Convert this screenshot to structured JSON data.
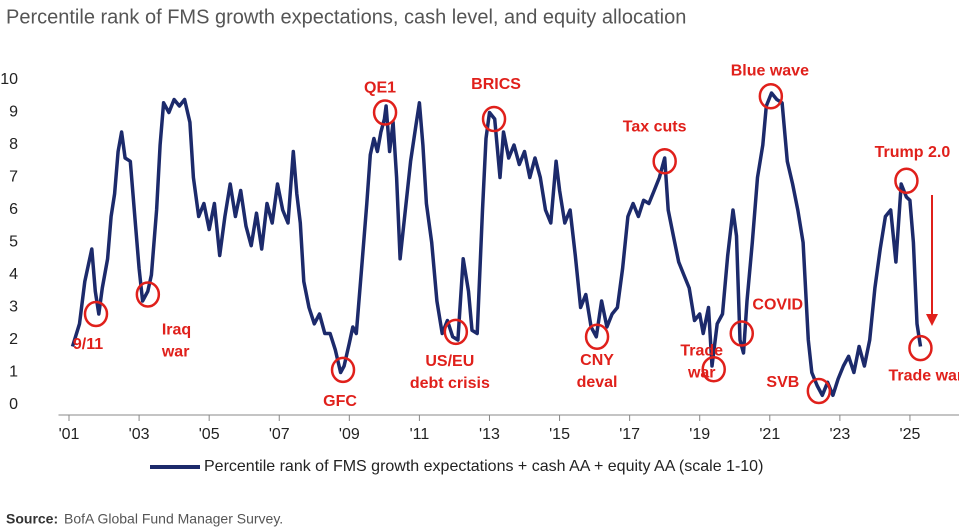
{
  "chart_data": {
    "type": "line",
    "title": "Percentile rank of FMS growth expectations, cash level, and equity allocation",
    "x": [
      2001.1,
      2001.3,
      2001.45,
      2001.55,
      2001.65,
      2001.75,
      2001.85,
      2001.95,
      2002.1,
      2002.2,
      2002.3,
      2002.4,
      2002.5,
      2002.6,
      2002.75,
      2002.9,
      2003.0,
      2003.1,
      2003.25,
      2003.35,
      2003.5,
      2003.6,
      2003.7,
      2003.85,
      2004.0,
      2004.15,
      2004.3,
      2004.45,
      2004.55,
      2004.7,
      2004.85,
      2005.0,
      2005.15,
      2005.3,
      2005.45,
      2005.6,
      2005.75,
      2005.9,
      2006.05,
      2006.2,
      2006.35,
      2006.5,
      2006.65,
      2006.8,
      2006.95,
      2007.1,
      2007.25,
      2007.4,
      2007.5,
      2007.6,
      2007.7,
      2007.85,
      2008.0,
      2008.15,
      2008.3,
      2008.45,
      2008.6,
      2008.75,
      2008.85,
      2009.0,
      2009.1,
      2009.2,
      2009.35,
      2009.5,
      2009.6,
      2009.7,
      2009.8,
      2009.9,
      2010.0,
      2010.05,
      2010.15,
      2010.25,
      2010.35,
      2010.45,
      2010.55,
      2010.65,
      2010.75,
      2010.9,
      2011.0,
      2011.1,
      2011.2,
      2011.35,
      2011.5,
      2011.65,
      2011.8,
      2011.95,
      2012.1,
      2012.25,
      2012.4,
      2012.5,
      2012.65,
      2012.8,
      2012.9,
      2013.0,
      2013.15,
      2013.3,
      2013.4,
      2013.55,
      2013.7,
      2013.85,
      2014.0,
      2014.15,
      2014.3,
      2014.45,
      2014.6,
      2014.75,
      2014.9,
      2015.0,
      2015.15,
      2015.3,
      2015.45,
      2015.6,
      2015.75,
      2015.9,
      2016.05,
      2016.2,
      2016.35,
      2016.5,
      2016.65,
      2016.8,
      2016.95,
      2017.1,
      2017.25,
      2017.4,
      2017.55,
      2017.7,
      2017.85,
      2018.0,
      2018.1,
      2018.25,
      2018.4,
      2018.55,
      2018.7,
      2018.85,
      2019.0,
      2019.1,
      2019.25,
      2019.35,
      2019.5,
      2019.65,
      2019.8,
      2019.95,
      2020.05,
      2020.15,
      2020.25,
      2020.35,
      2020.5,
      2020.65,
      2020.8,
      2020.9,
      2021.05,
      2021.2,
      2021.35,
      2021.5,
      2021.65,
      2021.8,
      2021.95,
      2022.1,
      2022.2,
      2022.35,
      2022.5,
      2022.65,
      2022.8,
      2022.95,
      2023.1,
      2023.25,
      2023.4,
      2023.55,
      2023.7,
      2023.85,
      2024.0,
      2024.15,
      2024.3,
      2024.45,
      2024.6,
      2024.75,
      2024.9,
      2025.0,
      2025.1,
      2025.2,
      2025.3
    ],
    "series": [
      {
        "name": "Percentile rank of FMS growth expectations + cash AA + equity AA (scale 1-10)",
        "color": "#1c2a6b",
        "values": [
          1.8,
          2.5,
          3.8,
          4.3,
          4.8,
          3.5,
          2.8,
          3.6,
          4.5,
          5.8,
          6.5,
          7.8,
          8.4,
          7.6,
          7.5,
          5.5,
          4.2,
          3.2,
          3.5,
          4.0,
          6.0,
          8.0,
          9.3,
          9.0,
          9.4,
          9.2,
          9.4,
          8.7,
          7.0,
          5.8,
          6.2,
          5.4,
          6.2,
          4.6,
          5.8,
          6.8,
          5.8,
          6.6,
          5.5,
          4.9,
          5.9,
          4.8,
          6.2,
          5.6,
          6.8,
          6.0,
          5.6,
          7.8,
          6.5,
          5.6,
          3.8,
          3.0,
          2.5,
          2.8,
          2.2,
          2.2,
          1.7,
          1.0,
          1.2,
          1.9,
          2.4,
          2.2,
          4.2,
          6.2,
          7.7,
          8.2,
          7.8,
          8.4,
          8.8,
          9.2,
          7.8,
          8.7,
          7.0,
          4.5,
          5.5,
          6.5,
          7.5,
          8.6,
          9.3,
          8.0,
          6.2,
          5.0,
          3.2,
          2.2,
          2.6,
          2.1,
          2.0,
          4.5,
          3.5,
          2.3,
          2.2,
          6.0,
          8.2,
          9.0,
          8.8,
          7.0,
          8.4,
          7.6,
          8.0,
          7.4,
          7.8,
          7.0,
          7.6,
          7.0,
          6.0,
          5.6,
          7.5,
          6.6,
          5.6,
          6.0,
          4.6,
          3.0,
          3.4,
          2.4,
          2.1,
          3.2,
          2.4,
          2.8,
          3.0,
          4.2,
          5.8,
          6.2,
          5.8,
          6.3,
          6.2,
          6.6,
          7.0,
          7.6,
          6.0,
          5.2,
          4.4,
          4.0,
          3.6,
          2.6,
          2.8,
          2.2,
          3.0,
          1.2,
          2.5,
          2.8,
          4.6,
          6.0,
          5.2,
          2.0,
          1.6,
          3.2,
          5.0,
          7.0,
          8.0,
          9.2,
          9.6,
          9.4,
          9.3,
          7.5,
          6.8,
          6.0,
          5.0,
          2.0,
          1.0,
          0.6,
          0.3,
          0.7,
          0.3,
          0.8,
          1.2,
          1.5,
          1.0,
          1.8,
          1.2,
          2.0,
          3.6,
          4.8,
          5.8,
          6.0,
          4.4,
          6.8,
          6.4,
          6.3,
          5.0,
          2.5,
          1.8
        ]
      }
    ],
    "xlim": [
      2000.7,
      2026.4
    ],
    "ylim": [
      0,
      10
    ],
    "xticks": [
      {
        "value": 2001,
        "label": "'01"
      },
      {
        "value": 2003,
        "label": "'03"
      },
      {
        "value": 2005,
        "label": "'05"
      },
      {
        "value": 2007,
        "label": "'07"
      },
      {
        "value": 2009,
        "label": "'09"
      },
      {
        "value": 2011,
        "label": "'11"
      },
      {
        "value": 2013,
        "label": "'13"
      },
      {
        "value": 2015,
        "label": "'15"
      },
      {
        "value": 2017,
        "label": "'17"
      },
      {
        "value": 2019,
        "label": "'19"
      },
      {
        "value": 2021,
        "label": "'21"
      },
      {
        "value": 2023,
        "label": "'23"
      },
      {
        "value": 2025,
        "label": "'25"
      }
    ],
    "yticks": [
      0,
      1,
      2,
      3,
      4,
      5,
      6,
      7,
      8,
      9,
      10
    ],
    "annotation_color": "#e0201b",
    "annotations": [
      {
        "lines": [
          "9/11"
        ],
        "x": 2001.77,
        "y": 2.8
      },
      {
        "lines": [
          "Iraq",
          "war"
        ],
        "x": 2003.25,
        "y": 3.4
      },
      {
        "lines": [
          "GFC"
        ],
        "x": 2008.82,
        "y": 1.08
      },
      {
        "lines": [
          "QE1"
        ],
        "x": 2010.02,
        "y": 9.0
      },
      {
        "lines": [
          "US/EU",
          "debt crisis"
        ],
        "x": 2012.04,
        "y": 2.25
      },
      {
        "lines": [
          "BRICS"
        ],
        "x": 2013.13,
        "y": 8.8
      },
      {
        "lines": [
          "CNY",
          "deval"
        ],
        "x": 2016.07,
        "y": 2.1
      },
      {
        "lines": [
          "Tax cuts"
        ],
        "x": 2018.0,
        "y": 7.5
      },
      {
        "lines": [
          "Trade",
          "war"
        ],
        "x": 2019.4,
        "y": 1.1
      },
      {
        "lines": [
          "COVID"
        ],
        "x": 2020.2,
        "y": 2.2
      },
      {
        "lines": [
          "Blue wave"
        ],
        "x": 2021.03,
        "y": 9.5
      },
      {
        "lines": [
          "SVB"
        ],
        "x": 2022.4,
        "y": 0.43
      },
      {
        "lines": [
          "Trump 2.0"
        ],
        "x": 2024.9,
        "y": 6.9
      },
      {
        "lines": [
          "Trade war"
        ],
        "x": 2025.3,
        "y": 1.75
      }
    ],
    "source_label": "Source:",
    "source": "BofA Global Fund Manager Survey."
  }
}
